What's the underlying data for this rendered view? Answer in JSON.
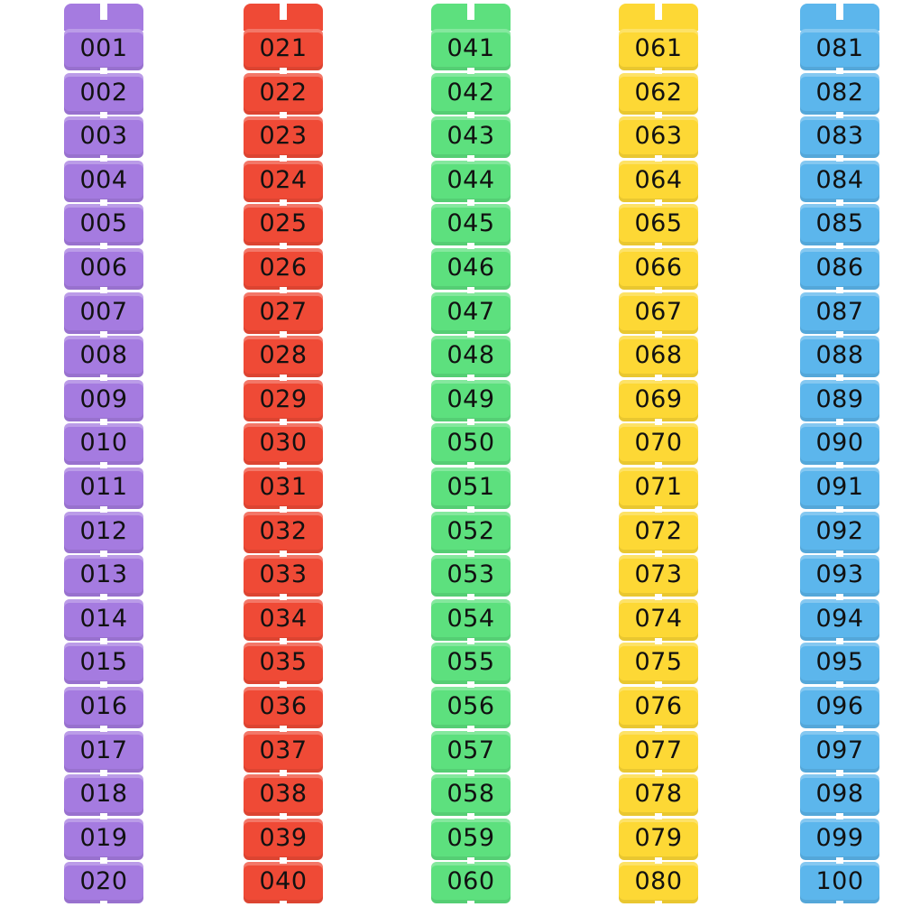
{
  "columns": [
    {
      "labels": [
        "001",
        "002",
        "003",
        "004",
        "005",
        "006",
        "007",
        "008",
        "009",
        "010",
        "011",
        "012",
        "013",
        "014",
        "015",
        "016",
        "017",
        "018",
        "019",
        "020"
      ]
    },
    {
      "labels": [
        "021",
        "022",
        "023",
        "024",
        "025",
        "026",
        "027",
        "028",
        "029",
        "030",
        "031",
        "032",
        "033",
        "034",
        "035",
        "036",
        "037",
        "038",
        "039",
        "040"
      ]
    },
    {
      "labels": [
        "041",
        "042",
        "043",
        "044",
        "045",
        "046",
        "047",
        "048",
        "049",
        "050",
        "051",
        "052",
        "053",
        "054",
        "055",
        "056",
        "057",
        "058",
        "059",
        "060"
      ]
    },
    {
      "labels": [
        "061",
        "062",
        "063",
        "064",
        "065",
        "066",
        "067",
        "068",
        "069",
        "070",
        "071",
        "072",
        "073",
        "074",
        "075",
        "076",
        "077",
        "078",
        "079",
        "080"
      ]
    },
    {
      "labels": [
        "081",
        "082",
        "083",
        "084",
        "085",
        "086",
        "087",
        "088",
        "089",
        "090",
        "091",
        "092",
        "093",
        "094",
        "095",
        "096",
        "097",
        "098",
        "099",
        "100"
      ]
    }
  ]
}
